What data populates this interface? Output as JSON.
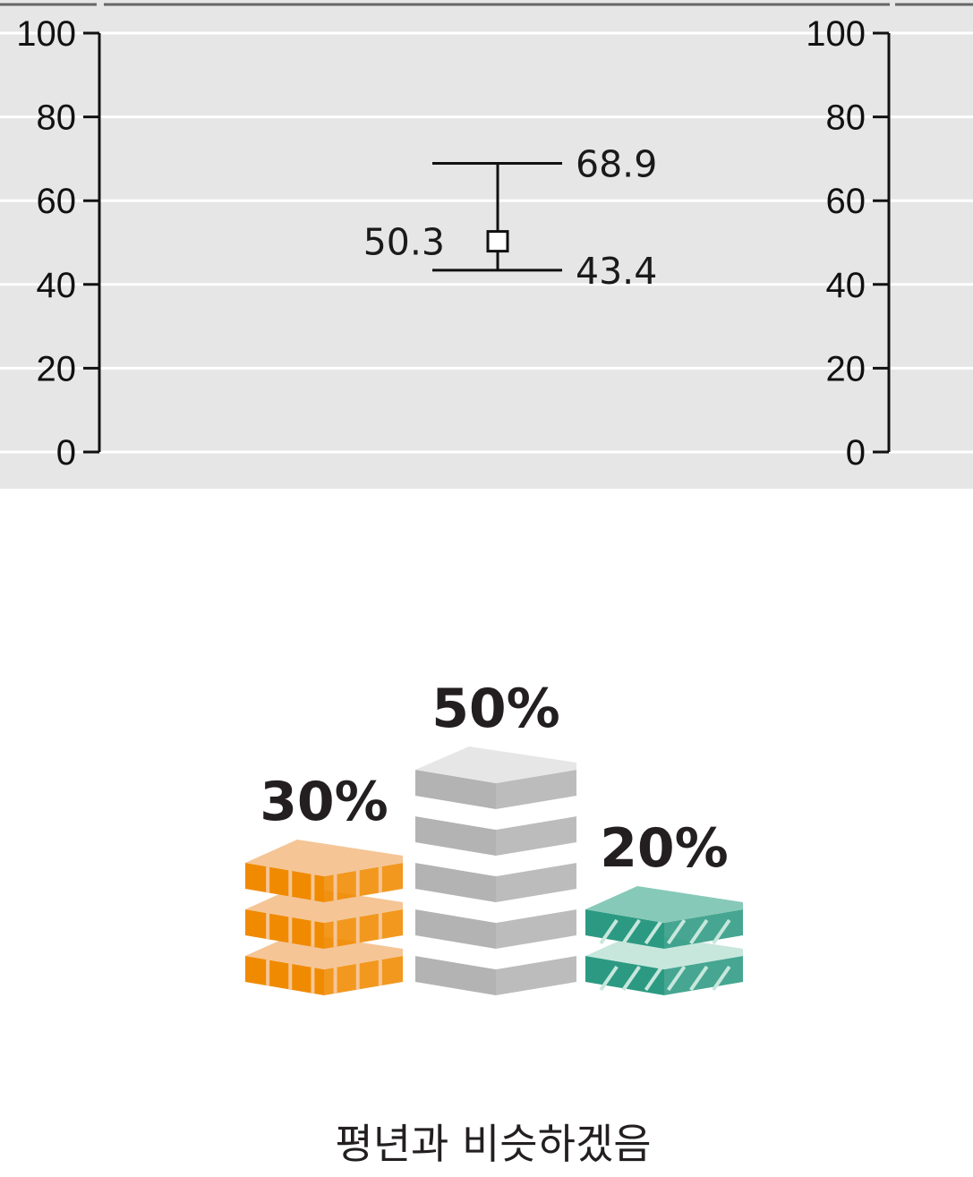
{
  "chart_data": [
    {
      "type": "range",
      "ylim": [
        0,
        100
      ],
      "yticks": [
        0,
        20,
        40,
        60,
        80,
        100
      ],
      "ytick_labels": [
        "0",
        "20",
        "40",
        "60",
        "80",
        "100"
      ],
      "grid": true,
      "range": {
        "low": 43.4,
        "high": 68.9,
        "point": 50.3
      },
      "labels": {
        "low": "43.4",
        "high": "68.9",
        "point": "50.3"
      }
    },
    {
      "type": "bar",
      "style": "stacked-blocks",
      "categories": [
        "",
        "",
        ""
      ],
      "values": [
        30,
        50,
        20
      ],
      "value_labels": [
        "30%",
        "50%",
        "20%"
      ],
      "colors": [
        "#f08a00",
        "#b3b3b3",
        "#2c9a82"
      ]
    }
  ],
  "caption": "평년과 비슷하겠음",
  "colors": {
    "panel_background": "#e6e6e6",
    "gridline": "#ffffff",
    "axis": "#111111"
  }
}
